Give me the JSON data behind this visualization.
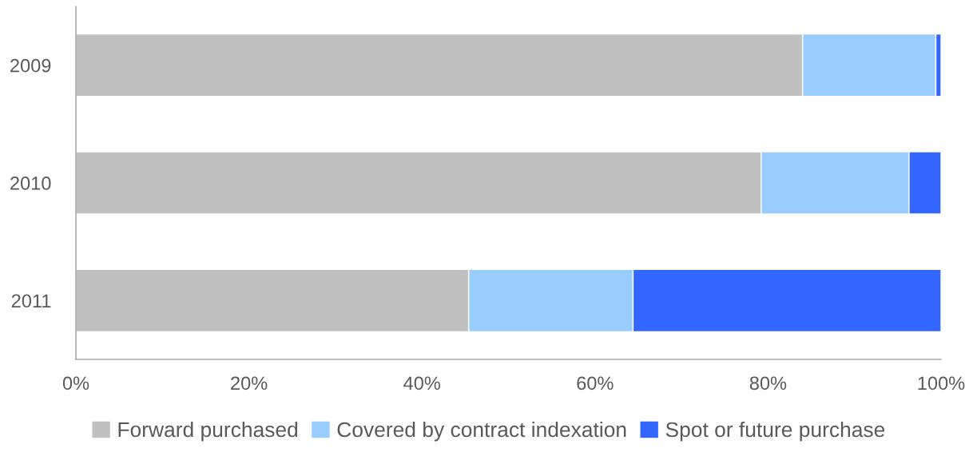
{
  "chart_data": {
    "type": "bar",
    "orientation": "horizontal",
    "stacked": true,
    "categories": [
      "2009",
      "2010",
      "2011"
    ],
    "series": [
      {
        "name": "Forward purchased",
        "color": "#c0c0c0",
        "values": [
          84.0,
          79.2,
          45.4
        ]
      },
      {
        "name": "Covered by contract indexation",
        "color": "#99ccff",
        "values": [
          15.4,
          17.1,
          19.0
        ]
      },
      {
        "name": "Spot or future purchase",
        "color": "#3366ff",
        "values": [
          0.6,
          3.7,
          35.6
        ]
      }
    ],
    "xlim": [
      0,
      100
    ],
    "xticks": [
      {
        "value": 0,
        "label": "0%"
      },
      {
        "value": 20,
        "label": "20%"
      },
      {
        "value": 40,
        "label": "40%"
      },
      {
        "value": 60,
        "label": "60%"
      },
      {
        "value": 80,
        "label": "80%"
      },
      {
        "value": 100,
        "label": "100%"
      }
    ],
    "grid": false,
    "legend": "bottom"
  }
}
